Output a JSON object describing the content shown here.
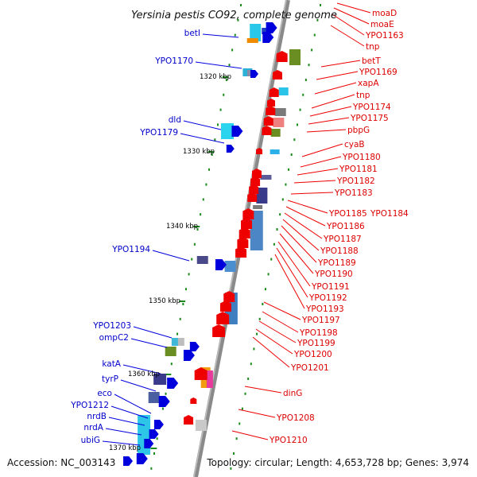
{
  "title": "Yersinia pestis CO92, complete genome",
  "footer": {
    "accession": "Accession: NC_003143",
    "summary": "Topology: circular; Length: 4,653,728 bp; Genes: 3,974"
  },
  "colors": {
    "left_strand": "#0000dd",
    "right_strand": "#ee0000",
    "backbone": "#888888",
    "tick": "#1a8a1a"
  },
  "kbp_ticks": [
    "1320 kbp",
    "1330 kbp",
    "1340 kbp",
    "1350 kbp",
    "1360 kbp",
    "1370 kbp"
  ],
  "left_labels": [
    "betI",
    "YPO1170",
    "dld",
    "YPO1179",
    "YPO1194",
    "YPO1203",
    "ompC2",
    "katA",
    "tyrP",
    "eco",
    "YPO1212",
    "nrdB",
    "nrdA",
    "ubiG"
  ],
  "right_labels": [
    "moaD",
    "moaE",
    "YPO1163",
    "tnp",
    "betT",
    "YPO1169",
    "xapA",
    "tnp",
    "YPO1174",
    "YPO1175",
    "pbpG",
    "cyaB",
    "YPO1180",
    "YPO1181",
    "YPO1182",
    "YPO1183",
    "YPO1185",
    "YPO1184",
    "YPO1186",
    "YPO1187",
    "YPO1188",
    "YPO1189",
    "YPO1190",
    "YPO1191",
    "YPO1192",
    "YPO1193",
    "YPO1197",
    "YPO1198",
    "YPO1199",
    "YPO1200",
    "YPO1201",
    "dinG",
    "YPO1208",
    "YPO1210"
  ]
}
